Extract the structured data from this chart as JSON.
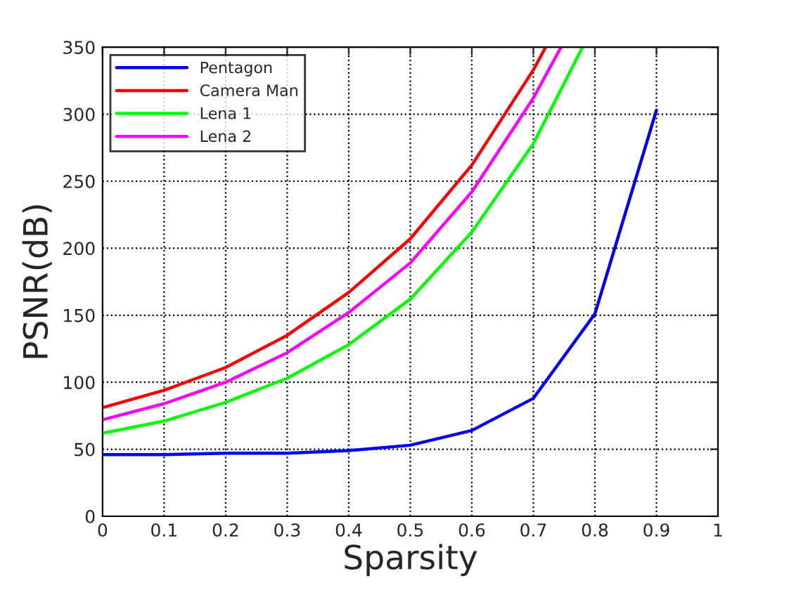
{
  "chart_data": {
    "type": "line",
    "xlabel": "Sparsity",
    "ylabel": "PSNR(dB)",
    "xlim": [
      0,
      1
    ],
    "ylim": [
      0,
      350
    ],
    "xticks": [
      0,
      0.1,
      0.2,
      0.3,
      0.4,
      0.5,
      0.6,
      0.7,
      0.8,
      0.9,
      1
    ],
    "yticks": [
      0,
      50,
      100,
      150,
      200,
      250,
      300,
      350
    ],
    "grid": true,
    "legend": "top left",
    "marker": "none",
    "line_style": "solid",
    "series": [
      {
        "name": "Pentagon",
        "color": "#0000ff",
        "x": [
          0,
          0.1,
          0.2,
          0.3,
          0.4,
          0.5,
          0.6,
          0.7,
          0.8,
          0.9
        ],
        "values": [
          46,
          46,
          47,
          47,
          49,
          53,
          64,
          88,
          151,
          303
        ]
      },
      {
        "name": "Camera Man",
        "color": "#ff0000",
        "x": [
          0,
          0.1,
          0.2,
          0.3,
          0.4,
          0.5,
          0.6,
          0.7,
          0.72
        ],
        "values": [
          81,
          94,
          111,
          135,
          167,
          207,
          262,
          333,
          350
        ]
      },
      {
        "name": "Lena 1",
        "color": "#00ff00",
        "x": [
          0,
          0.1,
          0.2,
          0.3,
          0.4,
          0.5,
          0.6,
          0.7,
          0.78
        ],
        "values": [
          62,
          71,
          85,
          103,
          128,
          162,
          212,
          278,
          350
        ]
      },
      {
        "name": "Lena 2",
        "color": "#ff00ff",
        "x": [
          0,
          0.1,
          0.2,
          0.3,
          0.4,
          0.5,
          0.6,
          0.7,
          0.745
        ],
        "values": [
          72,
          84,
          100,
          122,
          152,
          189,
          242,
          312,
          350
        ]
      }
    ]
  }
}
